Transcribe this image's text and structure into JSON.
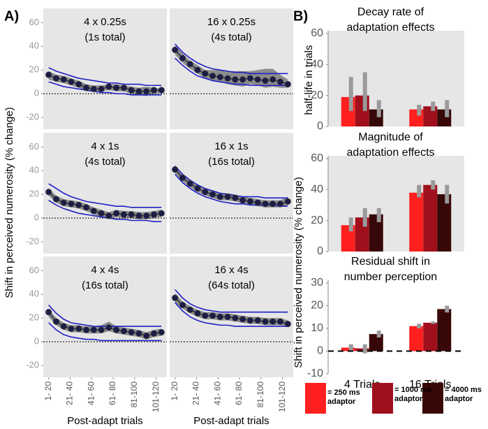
{
  "labels": {
    "a": "A)",
    "b": "B)"
  },
  "chart_data": [
    {
      "type": "line",
      "title": [
        "4 x 0.25s",
        "(1s total)"
      ],
      "xlim": [
        5,
        120
      ],
      "ylim": [
        -30,
        72
      ],
      "yticks": [
        -20,
        0,
        20,
        40,
        60
      ],
      "zero_line": true,
      "x": [
        10,
        17,
        24,
        31,
        38,
        45,
        52,
        59,
        66,
        73,
        80,
        87,
        94,
        101,
        108,
        115
      ],
      "values": [
        16,
        13,
        12,
        10,
        8,
        5,
        4,
        4,
        6,
        5,
        5,
        3,
        2,
        2,
        3,
        3
      ],
      "band_low": [
        12,
        10,
        9,
        7,
        5,
        2,
        2,
        2,
        3,
        2,
        2,
        0,
        -1,
        -2,
        0,
        1
      ],
      "band_high": [
        19,
        16,
        15,
        13,
        11,
        8,
        7,
        7,
        8,
        8,
        7,
        6,
        5,
        6,
        5,
        4
      ],
      "fit_upper": [
        22,
        19,
        17,
        15,
        13,
        12,
        11,
        10,
        9,
        9,
        8,
        8,
        8,
        7,
        7,
        7
      ],
      "fit_lower": [
        10,
        8,
        6,
        5,
        4,
        3,
        2,
        1,
        1,
        0,
        0,
        -1,
        -1,
        -1,
        -1,
        -1
      ]
    },
    {
      "type": "line",
      "title": [
        "16 x 0.25s",
        "(4s total)"
      ],
      "xlim": [
        5,
        120
      ],
      "ylim": [
        -30,
        72
      ],
      "zero_line": true,
      "x": [
        10,
        17,
        24,
        31,
        38,
        45,
        52,
        59,
        66,
        73,
        80,
        87,
        94,
        101,
        108,
        115
      ],
      "values": [
        37,
        30,
        25,
        20,
        17,
        15,
        14,
        13,
        12,
        12,
        13,
        12,
        11,
        12,
        10,
        8
      ],
      "band_low": [
        33,
        26,
        21,
        17,
        13,
        11,
        10,
        8,
        7,
        6,
        8,
        7,
        5,
        6,
        5,
        5
      ],
      "band_high": [
        41,
        34,
        28,
        24,
        20,
        20,
        20,
        19,
        19,
        19,
        19,
        20,
        21,
        21,
        16,
        12
      ],
      "fit_upper": [
        42,
        35,
        30,
        26,
        23,
        21,
        20,
        19,
        18,
        18,
        17,
        17,
        17,
        17,
        17,
        17
      ],
      "fit_lower": [
        30,
        24,
        19,
        15,
        13,
        11,
        10,
        9,
        8,
        8,
        7,
        7,
        7,
        7,
        7,
        7
      ]
    },
    {
      "type": "line",
      "title": [
        "4 x 1s",
        "(4s total)"
      ],
      "xlim": [
        5,
        120
      ],
      "ylim": [
        -30,
        72
      ],
      "yticks": [
        -20,
        0,
        20,
        40,
        60
      ],
      "zero_line": true,
      "ylabel": "Shift in perceived numerosity (% change)",
      "x": [
        10,
        17,
        24,
        31,
        38,
        45,
        52,
        59,
        66,
        73,
        80,
        87,
        94,
        101,
        108,
        115
      ],
      "values": [
        22,
        16,
        13,
        12,
        11,
        9,
        6,
        4,
        2,
        4,
        3,
        3,
        2,
        2,
        3,
        4
      ],
      "band_low": [
        19,
        13,
        10,
        9,
        8,
        6,
        3,
        1,
        -1,
        1,
        0,
        0,
        -1,
        -1,
        0,
        1
      ],
      "band_high": [
        25,
        19,
        16,
        15,
        14,
        12,
        9,
        7,
        5,
        7,
        6,
        6,
        5,
        5,
        6,
        7
      ],
      "fit_upper": [
        29,
        25,
        21,
        18,
        16,
        14,
        13,
        12,
        11,
        10,
        10,
        9,
        9,
        9,
        9,
        9
      ],
      "fit_lower": [
        15,
        11,
        8,
        6,
        4,
        3,
        2,
        1,
        0,
        -1,
        -1,
        -2,
        -2,
        -2,
        -3,
        -3
      ]
    },
    {
      "type": "line",
      "title": [
        "16 x 1s",
        "(16s total)"
      ],
      "xlim": [
        5,
        120
      ],
      "ylim": [
        -30,
        72
      ],
      "zero_line": true,
      "x": [
        10,
        17,
        24,
        31,
        38,
        45,
        52,
        59,
        66,
        73,
        80,
        87,
        94,
        101,
        108,
        115
      ],
      "values": [
        41,
        34,
        29,
        25,
        22,
        20,
        18,
        18,
        17,
        15,
        14,
        13,
        12,
        12,
        12,
        14
      ],
      "band_low": [
        38,
        31,
        26,
        22,
        19,
        17,
        15,
        15,
        14,
        12,
        11,
        10,
        9,
        9,
        9,
        11
      ],
      "band_high": [
        44,
        37,
        32,
        28,
        25,
        23,
        21,
        21,
        20,
        18,
        17,
        16,
        15,
        15,
        15,
        18
      ],
      "fit_upper": [
        44,
        37,
        32,
        28,
        25,
        23,
        21,
        20,
        19,
        18,
        18,
        18,
        17,
        17,
        17,
        17
      ],
      "fit_lower": [
        37,
        30,
        25,
        21,
        18,
        16,
        14,
        13,
        12,
        12,
        11,
        11,
        11,
        11,
        10,
        10
      ]
    },
    {
      "type": "line",
      "title": [
        "4 x 4s",
        "(16s total)"
      ],
      "xlim": [
        5,
        120
      ],
      "ylim": [
        -30,
        72
      ],
      "yticks": [
        -20,
        0,
        20,
        40,
        60
      ],
      "zero_line": true,
      "xlabel": "Post-adapt trials",
      "xticks": [
        {
          "value": 10,
          "label": "1- 20"
        },
        {
          "value": 30,
          "label": "21- 40"
        },
        {
          "value": 50,
          "label": "41- 60"
        },
        {
          "value": 70,
          "label": "61- 80"
        },
        {
          "value": 90,
          "label": "81-100"
        },
        {
          "value": 110,
          "label": "101-120"
        }
      ],
      "x": [
        10,
        17,
        24,
        31,
        38,
        45,
        52,
        59,
        66,
        73,
        80,
        87,
        94,
        101,
        108,
        115
      ],
      "values": [
        25,
        17,
        13,
        11,
        11,
        10,
        10,
        10,
        12,
        10,
        9,
        8,
        7,
        5,
        7,
        8
      ],
      "band_low": [
        21,
        14,
        10,
        8,
        8,
        7,
        7,
        7,
        9,
        7,
        6,
        5,
        4,
        2,
        4,
        5
      ],
      "band_high": [
        28,
        20,
        16,
        14,
        14,
        13,
        13,
        14,
        17,
        13,
        12,
        11,
        10,
        8,
        10,
        11
      ],
      "fit_upper": [
        31,
        24,
        19,
        16,
        15,
        14,
        13,
        13,
        13,
        13,
        13,
        13,
        13,
        13,
        13,
        13
      ],
      "fit_lower": [
        16,
        10,
        6,
        4,
        3,
        2,
        2,
        1,
        1,
        1,
        1,
        1,
        1,
        1,
        1,
        1
      ]
    },
    {
      "type": "line",
      "title": [
        "16 x 4s",
        "(64s total)"
      ],
      "xlim": [
        5,
        120
      ],
      "ylim": [
        -30,
        72
      ],
      "zero_line": true,
      "xlabel": "Post-adapt trials",
      "xticks": [
        {
          "value": 10,
          "label": "1- 20"
        },
        {
          "value": 30,
          "label": "21- 40"
        },
        {
          "value": 50,
          "label": "41- 60"
        },
        {
          "value": 70,
          "label": "61- 80"
        },
        {
          "value": 90,
          "label": "81-100"
        },
        {
          "value": 110,
          "label": "101-120"
        }
      ],
      "x": [
        10,
        17,
        24,
        31,
        38,
        45,
        52,
        59,
        66,
        73,
        80,
        87,
        94,
        101,
        108,
        115
      ],
      "values": [
        37,
        31,
        27,
        24,
        22,
        22,
        21,
        21,
        20,
        19,
        18,
        18,
        17,
        17,
        17,
        15
      ],
      "band_low": [
        33,
        28,
        24,
        21,
        19,
        19,
        18,
        18,
        17,
        16,
        15,
        15,
        14,
        14,
        14,
        13
      ],
      "band_high": [
        41,
        34,
        30,
        27,
        25,
        25,
        24,
        24,
        23,
        22,
        21,
        21,
        20,
        20,
        20,
        18
      ],
      "fit_upper": [
        44,
        37,
        32,
        29,
        27,
        26,
        25,
        25,
        25,
        25,
        25,
        25,
        25,
        25,
        25,
        25
      ],
      "fit_lower": [
        33,
        26,
        21,
        18,
        16,
        15,
        14,
        14,
        13,
        13,
        13,
        13,
        13,
        13,
        13,
        13
      ]
    },
    {
      "type": "bar",
      "title": [
        "Decay rate of",
        "adaptation effects"
      ],
      "ylabel": "half-life in trials",
      "ylim": [
        0,
        60
      ],
      "yticks": [
        0,
        20,
        40,
        60
      ],
      "series": [
        {
          "color": "#ff1f1f",
          "values": [
            19,
            11
          ],
          "err_low": [
            10,
            7
          ],
          "err_high": [
            32,
            14
          ]
        },
        {
          "color": "#a00f1c",
          "values": [
            20,
            13
          ],
          "err_low": [
            10,
            10
          ],
          "err_high": [
            35,
            16
          ]
        },
        {
          "color": "#380707",
          "values": [
            11,
            11
          ],
          "err_low": [
            6,
            6
          ],
          "err_high": [
            17,
            17
          ]
        }
      ]
    },
    {
      "type": "bar",
      "title": [
        "Magnitude of",
        "adaptation effects"
      ],
      "ylabel": "Shift in perceived numerosity (% change)",
      "ylim": [
        0,
        60
      ],
      "yticks": [
        0,
        20,
        40,
        60
      ],
      "series": [
        {
          "color": "#ff1f1f",
          "values": [
            17,
            38
          ],
          "err_low": [
            13,
            35
          ],
          "err_high": [
            22,
            43
          ]
        },
        {
          "color": "#a00f1c",
          "values": [
            22,
            43
          ],
          "err_low": [
            16,
            40
          ],
          "err_high": [
            28,
            46
          ]
        },
        {
          "color": "#380707",
          "values": [
            24,
            37
          ],
          "err_low": [
            19,
            31
          ],
          "err_high": [
            28,
            43
          ]
        }
      ]
    },
    {
      "type": "bar",
      "title": [
        "Residual shift in",
        "number perception"
      ],
      "ylim": [
        -10,
        30
      ],
      "yticks": [
        -10,
        0,
        10,
        20,
        30
      ],
      "zero_line": true,
      "categories": [
        "4 Trials",
        "16 Trials"
      ],
      "series": [
        {
          "name": "= 250 ms adaptor",
          "color": "#ff1f1f",
          "values": [
            1.5,
            11
          ],
          "err_low": [
            0,
            10
          ],
          "err_high": [
            3,
            12
          ]
        },
        {
          "name": "= 1000 ms adaptor",
          "color": "#a00f1c",
          "values": [
            1.2,
            12.5
          ],
          "err_low": [
            -1,
            12
          ],
          "err_high": [
            3,
            13
          ]
        },
        {
          "name": "= 4000 ms adaptor",
          "color": "#380707",
          "values": [
            7.5,
            18.5
          ],
          "err_low": [
            6,
            17
          ],
          "err_high": [
            9,
            20
          ]
        }
      ]
    }
  ]
}
